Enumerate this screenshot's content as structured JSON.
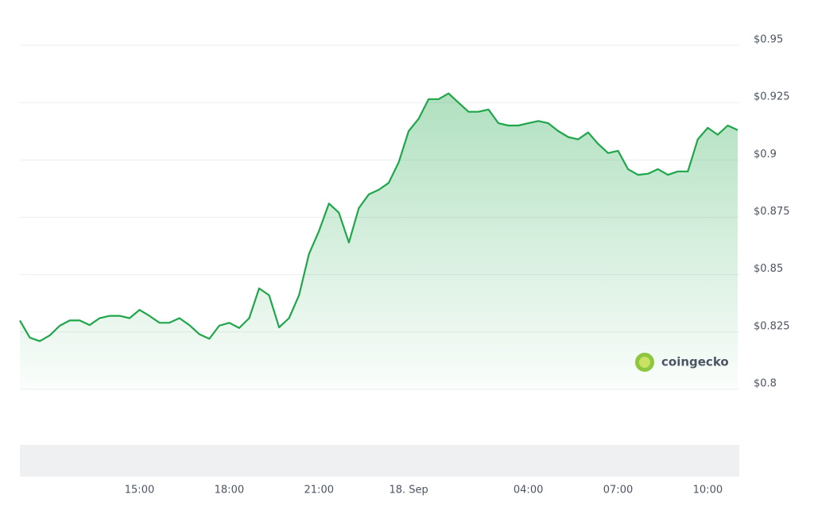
{
  "chart_data": {
    "type": "line",
    "categories": [
      null,
      null,
      null,
      null,
      null,
      null,
      null,
      null,
      null,
      null,
      null,
      null,
      "15:00",
      null,
      null,
      null,
      null,
      null,
      null,
      null,
      null,
      "18:00",
      null,
      null,
      null,
      null,
      null,
      null,
      null,
      null,
      "21:00",
      null,
      null,
      null,
      null,
      null,
      null,
      null,
      null,
      "18. Sep",
      null,
      null,
      null,
      null,
      null,
      null,
      null,
      null,
      null,
      null,
      null,
      "04:00",
      null,
      null,
      null,
      null,
      null,
      null,
      null,
      null,
      "07:00",
      null,
      null,
      null,
      null,
      null,
      null,
      null,
      null,
      "10:00",
      null,
      null,
      null
    ],
    "values": [
      0.83,
      0.8225,
      0.821,
      0.8235,
      0.8277,
      0.83,
      0.83,
      0.828,
      0.831,
      0.832,
      0.832,
      0.831,
      0.8346,
      0.832,
      0.829,
      0.829,
      0.831,
      0.828,
      0.824,
      0.822,
      0.8277,
      0.829,
      0.8267,
      0.831,
      0.844,
      0.841,
      0.827,
      0.831,
      0.841,
      0.859,
      0.869,
      0.881,
      0.877,
      0.864,
      0.879,
      0.885,
      0.887,
      0.89,
      0.899,
      0.9126,
      0.918,
      0.9265,
      0.9265,
      0.929,
      0.925,
      0.921,
      0.921,
      0.922,
      0.916,
      0.915,
      0.915,
      0.916,
      0.917,
      0.916,
      0.9126,
      0.91,
      0.909,
      0.912,
      0.907,
      0.903,
      0.904,
      0.896,
      0.8935,
      0.894,
      0.896,
      0.8935,
      0.895,
      0.895,
      0.909,
      0.914,
      0.911,
      0.915,
      0.913
    ],
    "color": "#1fa64a",
    "ylim": [
      0.8,
      0.95
    ],
    "yticks": [
      {
        "value": 0.8,
        "label": "$0.8"
      },
      {
        "value": 0.825,
        "label": "$0.825"
      },
      {
        "value": 0.85,
        "label": "$0.85"
      },
      {
        "value": 0.875,
        "label": "$0.875"
      },
      {
        "value": 0.9,
        "label": "$0.9"
      },
      {
        "value": 0.925,
        "label": "$0.925"
      },
      {
        "value": 0.95,
        "label": "$0.95"
      }
    ],
    "grid": true,
    "watermark": "coingecko"
  }
}
